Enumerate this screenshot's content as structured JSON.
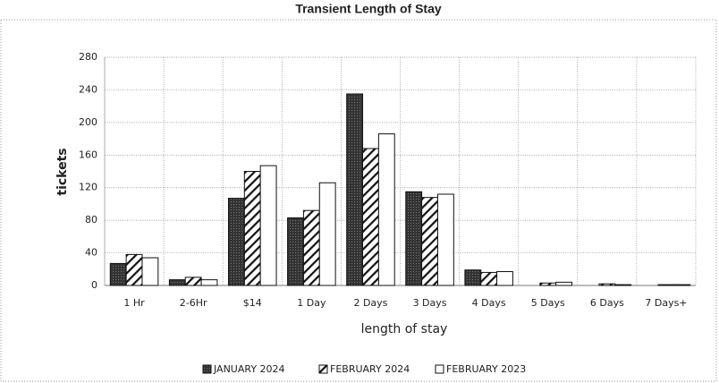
{
  "chart_data": {
    "type": "bar",
    "title": "Transient Length of Stay",
    "x_label": "length of stay",
    "y_label": "tickets",
    "categories": [
      "1 Hr",
      "2-6Hr",
      "$14",
      "1 Day",
      "2 Days",
      "3 Days",
      "4 Days",
      "5 Days",
      "6 Days",
      "7 Days+"
    ],
    "series": [
      {
        "name": "JANUARY 2024",
        "color": "#333333",
        "values": [
          27,
          7,
          107,
          83,
          235,
          115,
          19,
          0,
          0,
          0
        ]
      },
      {
        "name": "FEBRUARY 2024",
        "color": "#ffffff",
        "values": [
          38,
          10,
          140,
          92,
          168,
          108,
          16,
          3,
          2,
          1
        ]
      },
      {
        "name": "FEBRUARY 2023",
        "color": "#ffffff",
        "values": [
          34,
          7,
          147,
          126,
          186,
          112,
          17,
          4,
          1,
          1
        ]
      }
    ],
    "ylim": [
      0,
      280
    ],
    "yticks": [
      0,
      40,
      80,
      120,
      160,
      200,
      240,
      280
    ],
    "grid": true,
    "legend": "bottom"
  }
}
